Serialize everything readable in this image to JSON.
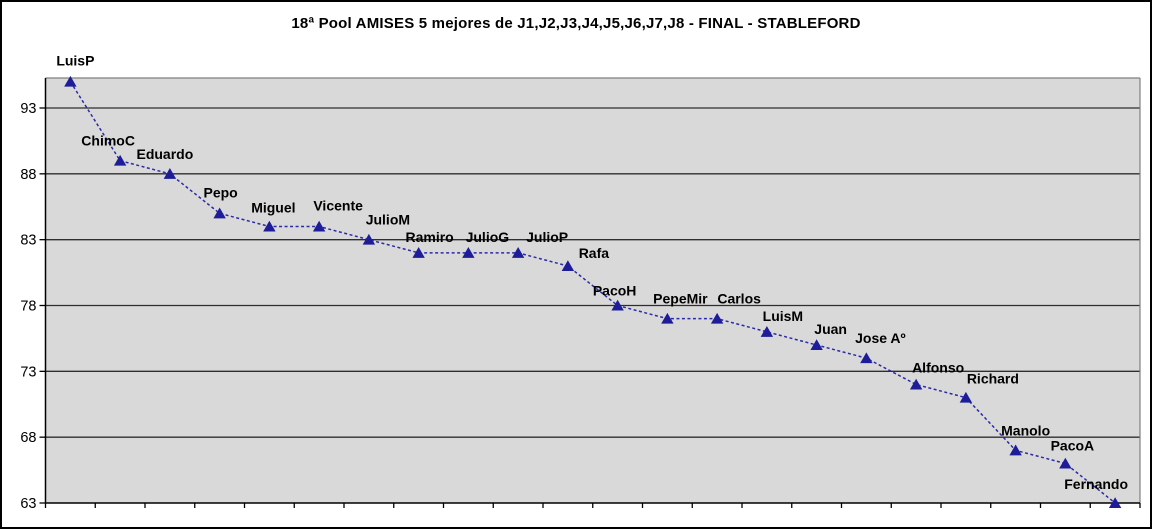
{
  "chart_data": {
    "type": "line",
    "title": "18ª Pool AMISES 5 mejores de J1,J2,J3,J4,J5,J6,J7,J8 - FINAL - STABLEFORD",
    "categories": [
      "LuisP",
      "ChimoC",
      "Eduardo",
      "Pepo",
      "Miguel",
      "Vicente",
      "JulioM",
      "Ramiro",
      "JulioG",
      "JulioP",
      "Rafa",
      "PacoH",
      "PepeMir",
      "Carlos",
      "LuisM",
      "Juan",
      "Jose Aº",
      "Alfonso",
      "Richard",
      "Manolo",
      "PacoA",
      "Fernando"
    ],
    "values": [
      95,
      89,
      88,
      85,
      84,
      84,
      83,
      82,
      82,
      82,
      81,
      78,
      77,
      77,
      76,
      75,
      74,
      72,
      71,
      67,
      66,
      63
    ],
    "point_labels": [
      "LuisP",
      "ChimoC",
      "Eduardo",
      "Pepo",
      "Miguel",
      "Vicente",
      "JulioM",
      "Ramiro",
      "JulioG",
      "JulioP",
      "Rafa",
      "PacoH",
      "PepeMir",
      "Carlos",
      "LuisM",
      "Juan",
      "Jose Aº",
      "Alfonso",
      "Richard",
      "Manolo",
      "PacoA",
      "Fernando"
    ],
    "xlabel": "",
    "ylabel": "",
    "y_ticks": [
      63,
      68,
      73,
      78,
      83,
      88,
      93
    ],
    "ylim": [
      63,
      95.3
    ],
    "grid": "horizontal",
    "legend": "none",
    "marker": "triangle",
    "line_style": "dashed",
    "colors": {
      "series": "#2B2BA6",
      "marker": "#1D1D99",
      "plot_background": "#D9D9D9",
      "gridline": "#2e2e2e",
      "axis": "#000000",
      "plot_border": "#808080",
      "text": "#000000",
      "chart_background": "#FFFFFF"
    }
  }
}
